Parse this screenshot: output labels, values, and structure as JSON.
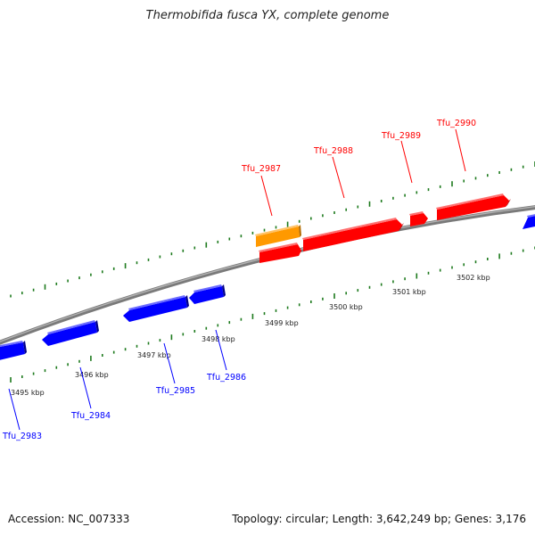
{
  "title": "Thermobifida fusca YX, complete genome",
  "footer": {
    "accession": "Accession: NC_007333",
    "topology": "Topology: circular; Length: 3,642,249 bp; Genes: 3,176"
  },
  "colors": {
    "backbone": "#7a7a7a",
    "ticks": "#1d7a1d",
    "forward_gene": "#ff0000",
    "forward_gene_dark": "#b30000",
    "reverse_gene": "#0000ff",
    "reverse_gene_dark": "#00008a",
    "highlight_gene": "#ff9900",
    "highlight_gene_dark": "#b36b00"
  },
  "tick_labels": [
    "3495 kbp",
    "3496 kbp",
    "3497 kbp",
    "3498 kbp",
    "3499 kbp",
    "3500 kbp",
    "3501 kbp",
    "3502 kbp"
  ],
  "genes": [
    {
      "name": "Tfu_2983",
      "strand": "reverse"
    },
    {
      "name": "Tfu_2984",
      "strand": "reverse"
    },
    {
      "name": "Tfu_2985",
      "strand": "reverse"
    },
    {
      "name": "Tfu_2986",
      "strand": "reverse"
    },
    {
      "name": "Tfu_2987",
      "strand": "forward"
    },
    {
      "name": "Tfu_2988",
      "strand": "forward"
    },
    {
      "name": "Tfu_2989",
      "strand": "forward"
    },
    {
      "name": "Tfu_2990",
      "strand": "forward"
    }
  ]
}
